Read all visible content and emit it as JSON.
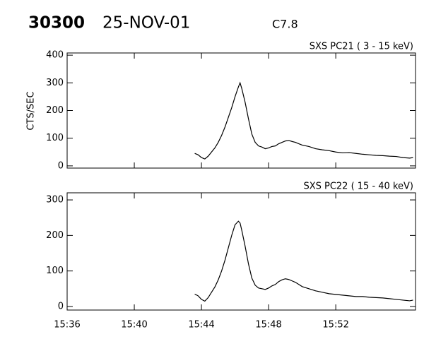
{
  "chart_data": [
    {
      "type": "line",
      "title": "30300",
      "subtitle": "25-NOV-01",
      "annotation": "C7.8",
      "ylabel": "CTS/SEC",
      "x": [
        943.6,
        943.8,
        944.0,
        944.2,
        944.4,
        944.6,
        944.8,
        945.0,
        945.2,
        945.4,
        945.6,
        945.8,
        946.0,
        946.2,
        946.3,
        946.4,
        946.6,
        946.8,
        947.0,
        947.2,
        947.4,
        947.6,
        947.8,
        948.0,
        948.2,
        948.4,
        948.6,
        948.8,
        949.0,
        949.2,
        949.4,
        949.6,
        949.8,
        950.0,
        950.4,
        950.8,
        951.2,
        951.6,
        952.0,
        952.4,
        952.8,
        953.2,
        953.6,
        954.0,
        954.4,
        954.8,
        955.2,
        955.6,
        956.0,
        956.4,
        956.6
      ],
      "series": [
        {
          "name": "SXS PC21  (  3 - 15 keV)",
          "color": "#000000",
          "values": [
            45,
            40,
            30,
            25,
            35,
            50,
            65,
            85,
            110,
            140,
            175,
            210,
            250,
            285,
            300,
            280,
            230,
            170,
            115,
            85,
            72,
            68,
            62,
            65,
            70,
            72,
            80,
            85,
            90,
            92,
            88,
            85,
            80,
            75,
            70,
            62,
            58,
            55,
            50,
            47,
            48,
            45,
            42,
            40,
            38,
            37,
            35,
            34,
            30,
            28,
            30
          ]
        }
      ],
      "xlim": [
        936,
        956.75
      ],
      "xticks": [
        936,
        940,
        944,
        948,
        952
      ],
      "ylim": [
        -8,
        408
      ],
      "yticks": [
        0,
        100,
        200,
        300,
        400
      ]
    },
    {
      "type": "line",
      "x": [
        943.6,
        943.8,
        944.0,
        944.2,
        944.4,
        944.6,
        944.8,
        945.0,
        945.2,
        945.4,
        945.6,
        945.8,
        946.0,
        946.2,
        946.3,
        946.4,
        946.6,
        946.8,
        947.0,
        947.2,
        947.4,
        947.6,
        947.8,
        948.0,
        948.2,
        948.4,
        948.6,
        948.8,
        949.0,
        949.2,
        949.4,
        949.6,
        949.8,
        950.0,
        950.4,
        950.8,
        951.2,
        951.6,
        952.0,
        952.4,
        952.8,
        953.2,
        953.6,
        954.0,
        954.4,
        954.8,
        955.2,
        955.6,
        956.0,
        956.4,
        956.6
      ],
      "series": [
        {
          "name": "SXS PC22  ( 15 - 40 keV)",
          "color": "#000000",
          "values": [
            35,
            30,
            20,
            15,
            25,
            40,
            55,
            75,
            100,
            130,
            165,
            200,
            230,
            240,
            235,
            215,
            170,
            120,
            80,
            60,
            52,
            50,
            48,
            52,
            58,
            62,
            70,
            75,
            78,
            76,
            72,
            68,
            62,
            56,
            50,
            44,
            40,
            36,
            34,
            32,
            30,
            28,
            28,
            26,
            25,
            24,
            22,
            20,
            18,
            16,
            18
          ]
        }
      ],
      "xlim": [
        936,
        956.75
      ],
      "xticks": [
        {
          "value": 936,
          "label": "15:36"
        },
        {
          "value": 940,
          "label": "15:40"
        },
        {
          "value": 944,
          "label": "15:44"
        },
        {
          "value": 948,
          "label": "15:48"
        },
        {
          "value": 952,
          "label": "15:52"
        }
      ],
      "ylim": [
        -10,
        320
      ],
      "yticks": [
        0,
        100,
        200,
        300
      ]
    }
  ]
}
